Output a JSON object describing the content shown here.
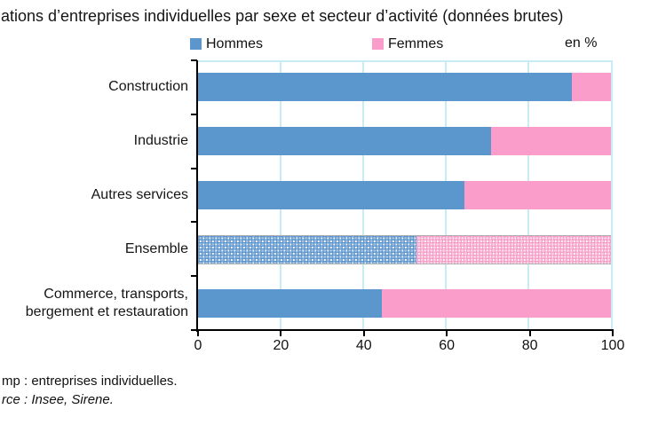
{
  "title": "ations d’entreprises individuelles par sexe et secteur d’activité (données brutes)",
  "legend": {
    "items": [
      {
        "label": "Hommes",
        "color": "#5b96cc"
      },
      {
        "label": "Femmes",
        "color": "#fb9dca"
      }
    ],
    "unit_label": "en %"
  },
  "chart_data": {
    "type": "bar",
    "orientation": "horizontal",
    "stacked": true,
    "unit": "%",
    "categories": [
      {
        "label_lines": [
          "Construction"
        ],
        "pattern": false
      },
      {
        "label_lines": [
          "Industrie"
        ],
        "pattern": false
      },
      {
        "label_lines": [
          "Autres services"
        ],
        "pattern": false
      },
      {
        "label_lines": [
          "Ensemble"
        ],
        "pattern": true
      },
      {
        "label_lines": [
          "Commerce, transports,",
          "bergement et restauration"
        ],
        "pattern": false
      }
    ],
    "series": [
      {
        "name": "Hommes",
        "color": "#5b96cc",
        "values": [
          90.5,
          71,
          64.5,
          53,
          44.5
        ]
      },
      {
        "name": "Femmes",
        "color": "#fb9dca",
        "values": [
          9.5,
          29,
          35.5,
          47,
          55.5
        ]
      }
    ],
    "xlim": [
      0,
      100
    ],
    "xticks": [
      0,
      20,
      40,
      60,
      80,
      100
    ],
    "gridlines_at": [
      20,
      40,
      60,
      80
    ],
    "grid": "vertical",
    "legend_position": "top"
  },
  "colors": {
    "hommes": "#5b96cc",
    "femmes": "#fb9dca",
    "gridline": "#c8ecf6",
    "axis": "#000000"
  },
  "footer": {
    "line1": "mp : entreprises individuelles.",
    "line2": "rce : Insee, Sirene."
  }
}
